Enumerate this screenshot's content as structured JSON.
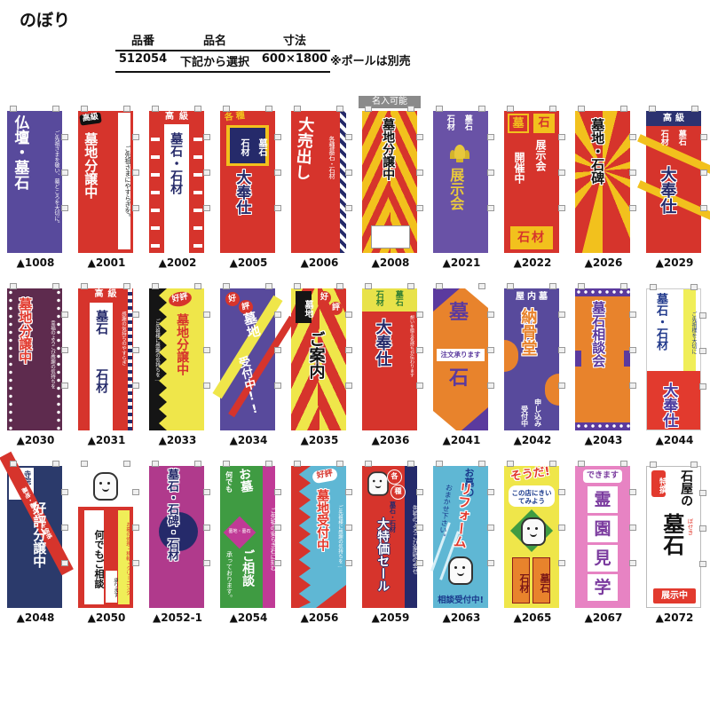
{
  "page": {
    "title": "のぼり",
    "note": "※ポールは別売"
  },
  "spec_table": {
    "headers": [
      "品番",
      "品名",
      "寸法"
    ],
    "row": {
      "part_no": "512054",
      "name": "下記から選択",
      "size": "600×1800"
    }
  },
  "colors": {
    "red": "#d6342c",
    "yellow": "#f2c11d",
    "lemon": "#efe64a",
    "navy": "#252a6a",
    "purple": "#584a9c",
    "orange": "#e8832c",
    "magenta": "#b03a8c",
    "green": "#3f9b42",
    "light_blue": "#5fb7d4",
    "pink": "#e783c3",
    "maroon": "#5e2b4e",
    "badge_gray": "#8a8a8a"
  },
  "banners": [
    {
      "id": "1008",
      "num": "▲1008",
      "parts": [
        {
          "c": "main vt",
          "t": "仏壇・墓石",
          "n": "main-text"
        },
        {
          "c": "side vt",
          "t": "ご先祖さまを敬い、墓どころを大切に。",
          "n": "side-text"
        }
      ]
    },
    {
      "id": "2001",
      "num": "▲2001",
      "parts": [
        {
          "c": "badge",
          "t": "高級",
          "n": "grade-badge"
        },
        {
          "c": "main vt",
          "t": "墓地分譲中",
          "n": "main-text"
        },
        {
          "c": "strip vt",
          "t": "ご先祖さまにやすらぎを。",
          "n": "side-text"
        }
      ]
    },
    {
      "id": "2002",
      "num": "▲2002",
      "parts": [
        {
          "c": "chevl",
          "t": "",
          "n": "side-pattern"
        },
        {
          "c": "chevr",
          "t": "",
          "n": "side-pattern"
        },
        {
          "c": "panel",
          "t": "",
          "n": "center-panel"
        },
        {
          "c": "top",
          "t": "高級",
          "n": "grade-label"
        },
        {
          "c": "main vt",
          "t": "墓石・石材",
          "n": "main-text"
        }
      ]
    },
    {
      "id": "2005",
      "num": "▲2005",
      "parts": [
        {
          "c": "kakushu",
          "t": "各種",
          "n": "category-label"
        },
        {
          "c": "ypanel",
          "t": "",
          "n": "panel"
        },
        {
          "c": "bx1 vt",
          "t": "墓石",
          "n": "label-boseki"
        },
        {
          "c": "bx2 vt",
          "t": "石材",
          "n": "label-sekizai"
        },
        {
          "c": "main vt ow",
          "t": "大奉仕",
          "n": "main-text"
        }
      ]
    },
    {
      "id": "2006",
      "num": "▲2006",
      "parts": [
        {
          "c": "main vt",
          "t": "大売出し",
          "n": "main-text"
        },
        {
          "c": "side vt",
          "t": "各種墓石・石材",
          "n": "side-text"
        },
        {
          "c": "band",
          "t": "",
          "n": "stripe-band"
        }
      ]
    },
    {
      "id": "2008",
      "num": "▲2008",
      "top_label": "名入可能",
      "parts": [
        {
          "c": "main vt ow",
          "t": "墓地分譲中",
          "n": "main-text"
        },
        {
          "c": "namebox",
          "t": "",
          "n": "name-entry-box"
        }
      ]
    },
    {
      "id": "2021",
      "num": "▲2021",
      "parts": [
        {
          "c": "c1 vt",
          "t": "墓石",
          "n": "label-boseki"
        },
        {
          "c": "c2 vt",
          "t": "石材",
          "n": "label-sekizai"
        },
        {
          "c": "lotus",
          "t": "",
          "n": "lotus-icon"
        },
        {
          "c": "main vt",
          "t": "展示会",
          "n": "main-text"
        }
      ]
    },
    {
      "id": "2022",
      "num": "▲2022",
      "parts": [
        {
          "c": "k1",
          "t": "墓",
          "n": "label-haka"
        },
        {
          "c": "k2",
          "t": "石",
          "n": "label-ishi"
        },
        {
          "c": "c1 vt",
          "t": "展示会",
          "n": "main-text-1"
        },
        {
          "c": "c2 vt",
          "t": "開催中",
          "n": "main-text-2"
        },
        {
          "c": "k3",
          "t": "石材",
          "n": "label-sekizai"
        }
      ]
    },
    {
      "id": "2026",
      "num": "▲2026",
      "parts": [
        {
          "c": "main vt ow",
          "t": "墓地・石碑",
          "n": "main-text"
        }
      ]
    },
    {
      "id": "2029",
      "num": "▲2029",
      "parts": [
        {
          "c": "ray1",
          "t": "",
          "n": "ray-stripe"
        },
        {
          "c": "ray2",
          "t": "",
          "n": "ray-stripe"
        },
        {
          "c": "topband",
          "t": "高級",
          "n": "grade-band"
        },
        {
          "c": "c1 vt",
          "t": "墓石",
          "n": "label-boseki"
        },
        {
          "c": "c2 vt",
          "t": "石材",
          "n": "label-sekizai"
        },
        {
          "c": "main vt ow",
          "t": "大奉仕",
          "n": "main-text"
        }
      ]
    },
    {
      "id": "2030",
      "num": "▲2030",
      "parts": [
        {
          "c": "edgeL",
          "t": "",
          "n": "border-pattern"
        },
        {
          "c": "edgeR",
          "t": "",
          "n": "border-pattern"
        },
        {
          "c": "main vt ow",
          "t": "墓地分譲中",
          "n": "main-text"
        },
        {
          "c": "side vt",
          "t": "幸福のよろこび感謝の気持ちを",
          "n": "side-text"
        }
      ]
    },
    {
      "id": "2031",
      "num": "▲2031",
      "parts": [
        {
          "c": "top",
          "t": "高級",
          "n": "grade-label"
        },
        {
          "c": "panel",
          "t": "",
          "n": "center-panel"
        },
        {
          "c": "d1 vt",
          "t": "墓石",
          "n": "main-text-1"
        },
        {
          "c": "d2 vt",
          "t": "石材",
          "n": "main-text-2"
        },
        {
          "c": "side vt",
          "t": "感謝の気持ちのやすらぎ",
          "n": "side-text"
        },
        {
          "c": "band",
          "t": "",
          "n": "checker-band"
        }
      ]
    },
    {
      "id": "2033",
      "num": "▲2033",
      "parts": [
        {
          "c": "zig",
          "t": "",
          "n": "zigzag-pattern"
        },
        {
          "c": "badge",
          "t": "好評",
          "n": "kohyo-badge"
        },
        {
          "c": "main vt",
          "t": "墓地分譲中",
          "n": "main-text"
        },
        {
          "c": "side vt",
          "t": "ご先祖様に感謝の気持ちを…",
          "n": "side-text"
        }
      ]
    },
    {
      "id": "2034",
      "num": "▲2034",
      "parts": [
        {
          "c": "s1",
          "t": "",
          "n": "diagonal-stripe"
        },
        {
          "c": "s2",
          "t": "",
          "n": "diagonal-stripe"
        },
        {
          "c": "g1",
          "t": "好",
          "n": "kohyo-badge"
        },
        {
          "c": "g2",
          "t": "評",
          "n": "kohyo-badge"
        },
        {
          "c": "m1 vt",
          "t": "墓地",
          "n": "main-text-1"
        },
        {
          "c": "m2 vt",
          "t": "受付中!!",
          "n": "main-text-2"
        }
      ]
    },
    {
      "id": "2035",
      "num": "▲2035",
      "parts": [
        {
          "c": "kbox vt",
          "t": "墓地",
          "n": "label-bochi"
        },
        {
          "c": "g1",
          "t": "好",
          "n": "kohyo-badge"
        },
        {
          "c": "g2",
          "t": "評",
          "n": "kohyo-badge"
        },
        {
          "c": "main vt ow",
          "t": "ご案内",
          "n": "main-text"
        }
      ]
    },
    {
      "id": "2036",
      "num": "▲2036",
      "parts": [
        {
          "c": "yband",
          "t": "",
          "n": "top-band"
        },
        {
          "c": "c1 vt",
          "t": "墓石",
          "n": "label-boseki"
        },
        {
          "c": "c2 vt",
          "t": "石材",
          "n": "label-sekizai"
        },
        {
          "c": "main vt ow",
          "t": "大奉仕",
          "n": "main-text"
        },
        {
          "c": "side vt",
          "t": "想いを贈る気持ちが伝わります",
          "n": "side-text"
        }
      ]
    },
    {
      "id": "2041",
      "num": "▲2041",
      "parts": [
        {
          "c": "tl",
          "t": "",
          "n": "corner-decor"
        },
        {
          "c": "tr",
          "t": "",
          "n": "corner-decor"
        },
        {
          "c": "bl",
          "t": "",
          "n": "corner-decor"
        },
        {
          "c": "br",
          "t": "",
          "n": "corner-decor"
        },
        {
          "c": "m1",
          "t": "墓",
          "n": "main-text-1"
        },
        {
          "c": "obox",
          "t": "注文承ります",
          "n": "order-label"
        },
        {
          "c": "m2",
          "t": "石",
          "n": "main-text-2"
        }
      ]
    },
    {
      "id": "2042",
      "num": "▲2042",
      "parts": [
        {
          "c": "cL",
          "t": "",
          "n": "circle-decor"
        },
        {
          "c": "cR",
          "t": "",
          "n": "circle-decor"
        },
        {
          "c": "top",
          "t": "屋内墓",
          "n": "top-label"
        },
        {
          "c": "main vt ow",
          "t": "納骨堂",
          "n": "main-text"
        },
        {
          "c": "c1 vt",
          "t": "申し込み",
          "n": "sub-text-1"
        },
        {
          "c": "c2 vt",
          "t": "受付中",
          "n": "sub-text-2"
        }
      ]
    },
    {
      "id": "2043",
      "num": "▲2043",
      "parts": [
        {
          "c": "bt",
          "t": "",
          "n": "border-band"
        },
        {
          "c": "bb",
          "t": "",
          "n": "border-band"
        },
        {
          "c": "e1",
          "t": "",
          "n": "edge-decor"
        },
        {
          "c": "e2",
          "t": "",
          "n": "edge-decor"
        },
        {
          "c": "main vt ow",
          "t": "墓石相談会",
          "n": "main-text"
        }
      ]
    },
    {
      "id": "2044",
      "num": "▲2044",
      "parts": [
        {
          "c": "ystrip vt",
          "t": "ご先祖様を大切に",
          "n": "side-text"
        },
        {
          "c": "c1 vt",
          "t": "墓石・石材",
          "n": "top-text"
        },
        {
          "c": "redarea",
          "t": "",
          "n": "red-panel"
        },
        {
          "c": "main vt ow",
          "t": "大奉仕",
          "n": "main-text"
        }
      ]
    },
    {
      "id": "2048",
      "num": "▲2048",
      "parts": [
        {
          "c": "wbox",
          "t": "",
          "n": "corner-panel"
        },
        {
          "c": "w1 vt",
          "t": "寺院",
          "n": "label-jiin"
        },
        {
          "c": "w2 vt",
          "t": "墓地",
          "n": "label-bochi"
        },
        {
          "c": "rstripe",
          "t": "墓地・墓石セット価格",
          "n": "diagonal-stripe"
        },
        {
          "c": "main vt",
          "t": "好評分譲中",
          "n": "main-text"
        }
      ]
    },
    {
      "id": "2050",
      "num": "▲2050",
      "parts": [
        {
          "c": "wtop",
          "t": "",
          "n": "top-panel"
        },
        {
          "c": "mascot",
          "t": "",
          "n": "mascot-icon"
        },
        {
          "c": "wpanel vt",
          "t": "何でもご相談",
          "n": "main-text"
        },
        {
          "c": "sm vt",
          "t": "承ります",
          "n": "sub-text"
        },
        {
          "c": "ystrip vt",
          "t": "お墓の修理・移転・クリーニング",
          "n": "side-text"
        }
      ]
    },
    {
      "id": "2052-1",
      "num": "▲2052-1",
      "parts": [
        {
          "c": "circle",
          "t": "",
          "n": "circle-decor"
        },
        {
          "c": "main vt ow",
          "t": "墓石・石碑・石材",
          "n": "main-text"
        }
      ]
    },
    {
      "id": "2054",
      "num": "▲2054",
      "parts": [
        {
          "c": "mstrip vt",
          "t": "ご先祖の安らぎ石に刻む",
          "n": "side-text"
        },
        {
          "c": "m1 vt",
          "t": "お墓",
          "n": "main-text-1"
        },
        {
          "c": "m2 vt",
          "t": "何でも",
          "n": "main-text-2"
        },
        {
          "c": "dia",
          "t": "",
          "n": "diamond-decor"
        },
        {
          "c": "diatext",
          "t": "墓地・墓石",
          "n": "diamond-text"
        },
        {
          "c": "m3 vt",
          "t": "ご相談",
          "n": "main-text-3"
        },
        {
          "c": "m4 vt",
          "t": "承っております。",
          "n": "main-text-4"
        }
      ]
    },
    {
      "id": "2056",
      "num": "▲2056",
      "parts": [
        {
          "c": "zig",
          "t": "",
          "n": "zigzag-pattern"
        },
        {
          "c": "bwedge",
          "t": "",
          "n": "corner-decor"
        },
        {
          "c": "badge",
          "t": "好評",
          "n": "kohyo-badge"
        },
        {
          "c": "main vt ow",
          "t": "墓地受付中",
          "n": "main-text"
        },
        {
          "c": "side vt",
          "t": "ご先祖様に感謝の気持ちを…",
          "n": "side-text"
        }
      ]
    },
    {
      "id": "2059",
      "num": "▲2059",
      "parts": [
        {
          "c": "nstrip vt",
          "t": "先祖のよろこび家庭の幸せ",
          "n": "side-text"
        },
        {
          "c": "mascot",
          "t": "",
          "n": "mascot-icon"
        },
        {
          "c": "g1",
          "t": "各",
          "n": "badge-kaku"
        },
        {
          "c": "g2",
          "t": "種",
          "n": "badge-shu"
        },
        {
          "c": "sub vt",
          "t": "墓石・石材",
          "n": "sub-text"
        },
        {
          "c": "main vt own",
          "t": "大特価セール",
          "n": "main-text"
        }
      ]
    },
    {
      "id": "2063",
      "num": "▲2063",
      "parts": [
        {
          "c": "t1 vt",
          "t": "お墓の",
          "n": "top-text"
        },
        {
          "c": "sl1",
          "t": "",
          "n": "slash-decor"
        },
        {
          "c": "sl2",
          "t": "",
          "n": "slash-decor"
        },
        {
          "c": "main vt ow",
          "t": "リフォーム",
          "n": "main-text"
        },
        {
          "c": "t2 vt",
          "t": "おまかせ下さい。",
          "n": "sub-text"
        },
        {
          "c": "mascot",
          "t": "",
          "n": "mascot-icon"
        },
        {
          "c": "t3",
          "t": "相談受付中!",
          "n": "bottom-text"
        }
      ]
    },
    {
      "id": "2065",
      "num": "▲2065",
      "parts": [
        {
          "c": "t1 ow",
          "t": "そうだ!",
          "n": "top-text"
        },
        {
          "c": "bubble",
          "t": "この店にきいてみよう",
          "n": "speech-bubble"
        },
        {
          "c": "dia",
          "t": "",
          "n": "diamond-decor"
        },
        {
          "c": "mascot",
          "t": "",
          "n": "mascot-icon"
        },
        {
          "c": "k1 vt",
          "t": "墓石",
          "n": "label-boseki"
        },
        {
          "c": "k2 vt",
          "t": "石材",
          "n": "label-sekizai"
        }
      ]
    },
    {
      "id": "2067",
      "num": "▲2067",
      "parts": [
        {
          "c": "top",
          "t": "できます",
          "n": "top-label"
        },
        {
          "c": "cbox cb0",
          "t": "霊",
          "n": "main-char"
        },
        {
          "c": "cbox cb1",
          "t": "園",
          "n": "main-char"
        },
        {
          "c": "cbox cb2",
          "t": "見",
          "n": "main-char"
        },
        {
          "c": "cbox cb3",
          "t": "学",
          "n": "main-char"
        }
      ]
    },
    {
      "id": "2072",
      "num": "▲2072",
      "parts": [
        {
          "c": "tok vt",
          "t": "特撰",
          "n": "tokusen-badge"
        },
        {
          "c": "t1 vt",
          "t": "石屋の",
          "n": "top-text"
        },
        {
          "c": "main vt",
          "t": "墓石",
          "n": "main-text"
        },
        {
          "c": "furi vt",
          "t": "ぼせき",
          "n": "furigana"
        },
        {
          "c": "ribbon",
          "t": "展示中",
          "n": "exhibit-ribbon"
        }
      ]
    }
  ]
}
